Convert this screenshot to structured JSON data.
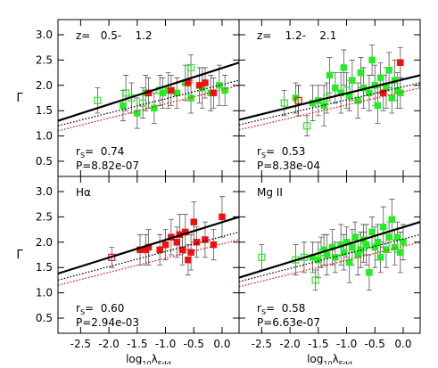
{
  "chart_data": [
    {
      "type": "scatter",
      "annotation": "z=   0.5-    1.2",
      "rs_symbol": "r",
      "rs_sub": "S",
      "rs_text": "=  0.74",
      "p_text": "P=8.82e-07",
      "ylabel": "Γ",
      "show_yticks": true,
      "show_xticks": false,
      "xlim": [
        -2.9,
        0.3
      ],
      "ylim": [
        0.2,
        3.3
      ],
      "xticks": [
        -2.5,
        -2,
        -1.5,
        -1,
        -0.5,
        0
      ],
      "yticks": [
        0.5,
        {
          "value": 1,
          "label": "1.0"
        },
        1.5,
        {
          "value": 2,
          "label": "2.0"
        },
        2.5,
        {
          "value": 3,
          "label": "3.0"
        }
      ],
      "series": [
        {
          "marker": "square-filled",
          "color": "#22ee22",
          "x": [
            -1.75,
            -1.5,
            -1.35,
            -1.2,
            -1.05,
            -0.95,
            -0.8,
            -0.65,
            -0.55,
            -0.35,
            -0.2,
            -0.05,
            0.05
          ],
          "values": [
            1.6,
            1.45,
            1.85,
            1.55,
            1.85,
            1.9,
            1.85,
            2.05,
            1.75,
            1.95,
            1.85,
            2.0,
            1.9
          ],
          "errors": [
            0.3,
            0.3,
            0.35,
            0.3,
            0.3,
            0.35,
            0.3,
            0.35,
            0.3,
            0.4,
            0.35,
            0.4,
            0.3
          ]
        },
        {
          "marker": "square-open",
          "color": "#22ee22",
          "x": [
            -2.2,
            -1.7,
            -1.6,
            -1.4,
            -1.1,
            -0.55
          ],
          "values": [
            1.7,
            1.85,
            1.75,
            1.65,
            1.9,
            2.35
          ],
          "errors": [
            0.25,
            0.35,
            0.3,
            0.3,
            0.3,
            0.25
          ]
        },
        {
          "marker": "square-filled",
          "color": "#ee1111",
          "x": [
            -1.3,
            -0.9,
            -0.6,
            -0.4,
            -0.3,
            -0.15
          ],
          "values": [
            1.85,
            1.9,
            2.05,
            2.0,
            2.05,
            1.85
          ],
          "errors": [
            0.3,
            0.3,
            0.35,
            0.35,
            0.3,
            0.3
          ]
        }
      ],
      "lines": [
        {
          "style": "solid",
          "color": "#000000",
          "x": [
            -2.9,
            0.3
          ],
          "values": [
            1.3,
            2.45
          ]
        },
        {
          "style": "dotted",
          "color": "#000000",
          "x": [
            -2.9,
            0.3
          ],
          "values": [
            1.2,
            2.1
          ]
        },
        {
          "style": "dotted",
          "color": "#ee1111",
          "x": [
            -2.9,
            0.3
          ],
          "values": [
            1.1,
            2.0
          ]
        }
      ]
    },
    {
      "type": "scatter",
      "annotation": "z=    1.2-    2.1",
      "rs_symbol": "r",
      "rs_sub": "S",
      "rs_text": "=  0.53",
      "p_text": "P=8.38e-04",
      "show_yticks": false,
      "show_xticks": false,
      "xlim": [
        -2.9,
        0.3
      ],
      "ylim": [
        0.2,
        3.3
      ],
      "xticks": [
        -2.5,
        -2,
        -1.5,
        -1,
        -0.5,
        0
      ],
      "yticks": [
        0.5,
        1,
        1.5,
        2,
        2.5,
        3
      ],
      "series": [
        {
          "marker": "square-filled",
          "color": "#22ee22",
          "x": [
            -1.9,
            -1.6,
            -1.5,
            -1.4,
            -1.3,
            -1.2,
            -1.1,
            -1.05,
            -0.95,
            -0.9,
            -0.8,
            -0.75,
            -0.7,
            -0.6,
            -0.55,
            -0.5,
            -0.45,
            -0.4,
            -0.3,
            -0.25,
            -0.2,
            -0.15,
            -0.1,
            -0.05
          ],
          "values": [
            1.75,
            1.65,
            1.7,
            1.6,
            2.2,
            1.95,
            1.85,
            2.35,
            1.8,
            2.1,
            1.7,
            2.25,
            1.95,
            1.85,
            2.5,
            2.0,
            1.6,
            2.15,
            1.95,
            2.3,
            1.75,
            2.1,
            1.9,
            1.85
          ],
          "errors": [
            0.3,
            0.35,
            0.3,
            0.4,
            0.35,
            0.3,
            0.4,
            0.35,
            0.3,
            0.4,
            0.35,
            0.3,
            0.4,
            0.35,
            0.3,
            0.4,
            0.35,
            0.3,
            0.4,
            0.35,
            0.3,
            0.4,
            0.35,
            0.3
          ]
        },
        {
          "marker": "square-open",
          "color": "#22ee22",
          "x": [
            -2.1,
            -1.85,
            -1.7,
            -1.35,
            -1.0
          ],
          "values": [
            1.65,
            1.7,
            1.2,
            1.75,
            1.9
          ],
          "errors": [
            0.25,
            0.3,
            0.2,
            0.3,
            0.35
          ]
        },
        {
          "marker": "square-filled",
          "color": "#ee1111",
          "x": [
            -0.35,
            -0.05
          ],
          "values": [
            1.85,
            2.45
          ],
          "errors": [
            0.35,
            0.3
          ]
        },
        {
          "marker": "square-open",
          "color": "#ee1111",
          "x": [
            -1.85
          ],
          "values": [
            1.7
          ],
          "errors": [
            0.3
          ]
        }
      ],
      "lines": [
        {
          "style": "solid",
          "color": "#000000",
          "x": [
            -2.9,
            0.3
          ],
          "values": [
            1.32,
            2.2
          ]
        },
        {
          "style": "dotted",
          "color": "#000000",
          "x": [
            -2.9,
            0.3
          ],
          "values": [
            1.22,
            2.05
          ]
        },
        {
          "style": "dotted",
          "color": "#ee1111",
          "x": [
            -2.9,
            0.3
          ],
          "values": [
            1.12,
            1.95
          ]
        }
      ]
    },
    {
      "type": "scatter",
      "annotation": "Hα",
      "rs_symbol": "r",
      "rs_sub": "S",
      "rs_text": "=  0.60",
      "p_text": "P=2.94e-03",
      "ylabel": "Γ",
      "xlabel": [
        "log",
        "10",
        "λ",
        "Edd"
      ],
      "show_yticks": true,
      "show_xticks": true,
      "xlim": [
        -2.9,
        0.3
      ],
      "ylim": [
        0.2,
        3.3
      ],
      "xticks": [
        -2.5,
        {
          "value": -2,
          "label": "-2.0"
        },
        -1.5,
        {
          "value": -1,
          "label": "-1.0"
        },
        -0.5,
        {
          "value": 0,
          "label": "0.0"
        }
      ],
      "yticks": [
        0.5,
        {
          "value": 1,
          "label": "1.0"
        },
        1.5,
        {
          "value": 2,
          "label": "2.0"
        },
        2.5,
        {
          "value": 3,
          "label": "3.0"
        }
      ],
      "series": [
        {
          "marker": "square-filled",
          "color": "#ee1111",
          "x": [
            -1.45,
            -1.35,
            -1.3,
            -1.1,
            -1.0,
            -0.9,
            -0.8,
            -0.75,
            -0.7,
            -0.65,
            -0.6,
            -0.55,
            -0.5,
            -0.45,
            -0.3,
            -0.15,
            0.0
          ],
          "values": [
            1.85,
            1.85,
            1.9,
            1.85,
            1.95,
            2.1,
            2.0,
            2.15,
            1.85,
            2.2,
            1.65,
            1.8,
            2.4,
            2.0,
            2.05,
            1.95,
            2.5
          ],
          "errors": [
            0.3,
            0.3,
            0.35,
            0.3,
            0.3,
            0.35,
            0.3,
            0.4,
            0.3,
            0.35,
            0.3,
            0.35,
            0.4,
            0.3,
            0.35,
            0.3,
            0.4
          ]
        },
        {
          "marker": "square-open",
          "color": "#ee1111",
          "x": [
            -1.95
          ],
          "values": [
            1.7
          ],
          "errors": [
            0.2
          ]
        }
      ],
      "lines": [
        {
          "style": "solid",
          "color": "#000000",
          "x": [
            -2.9,
            0.3
          ],
          "values": [
            1.38,
            2.5
          ]
        },
        {
          "style": "dotted",
          "color": "#000000",
          "x": [
            -2.9,
            0.3
          ],
          "values": [
            1.25,
            2.2
          ]
        },
        {
          "style": "dotted",
          "color": "#ee1111",
          "x": [
            -2.9,
            0.3
          ],
          "values": [
            1.15,
            2.05
          ]
        }
      ]
    },
    {
      "type": "scatter",
      "annotation": "Mg II",
      "rs_symbol": "r",
      "rs_sub": "S",
      "rs_text": "=  0.58",
      "p_text": "P=6.63e-07",
      "xlabel": [
        "log",
        "10",
        "λ",
        "Edd"
      ],
      "show_yticks": false,
      "show_xticks": true,
      "xlim": [
        -2.9,
        0.3
      ],
      "ylim": [
        0.2,
        3.3
      ],
      "xticks": [
        -2.5,
        {
          "value": -2,
          "label": "-2.0"
        },
        -1.5,
        {
          "value": -1,
          "label": "-1.0"
        },
        -0.5,
        {
          "value": 0,
          "label": "0.0"
        }
      ],
      "yticks": [
        0.5,
        1,
        1.5,
        2,
        2.5,
        3
      ],
      "series": [
        {
          "marker": "square-filled",
          "color": "#22ee22",
          "x": [
            -1.6,
            -1.5,
            -1.4,
            -1.35,
            -1.25,
            -1.2,
            -1.1,
            -1.05,
            -1.0,
            -0.95,
            -0.9,
            -0.85,
            -0.8,
            -0.75,
            -0.7,
            -0.65,
            -0.6,
            -0.55,
            -0.5,
            -0.45,
            -0.4,
            -0.35,
            -0.3,
            -0.25,
            -0.2,
            -0.15,
            -0.1,
            -0.05,
            0.0
          ],
          "values": [
            1.7,
            1.65,
            1.85,
            1.75,
            1.9,
            1.7,
            1.95,
            1.8,
            2.0,
            1.6,
            1.9,
            2.1,
            1.75,
            1.85,
            2.05,
            1.95,
            1.4,
            2.2,
            1.9,
            2.0,
            1.7,
            2.3,
            1.85,
            2.1,
            2.45,
            1.9,
            2.1,
            1.8,
            2.0
          ],
          "errors": [
            0.3,
            0.35,
            0.3,
            0.4,
            0.35,
            0.3,
            0.4,
            0.35,
            0.3,
            0.4,
            0.35,
            0.3,
            0.4,
            0.35,
            0.3,
            0.4,
            0.35,
            0.3,
            0.4,
            0.35,
            0.3,
            0.4,
            0.35,
            0.3,
            0.4,
            0.35,
            0.3,
            0.4,
            0.35
          ]
        },
        {
          "marker": "square-open",
          "color": "#22ee22",
          "x": [
            -2.5,
            -1.9,
            -1.75,
            -1.55,
            -1.45,
            -0.7
          ],
          "values": [
            1.7,
            1.65,
            1.7,
            1.25,
            1.8,
            1.9
          ],
          "errors": [
            0.25,
            0.3,
            0.3,
            0.2,
            0.3,
            0.3
          ]
        }
      ],
      "lines": [
        {
          "style": "solid",
          "color": "#000000",
          "x": [
            -2.9,
            0.3
          ],
          "values": [
            1.3,
            2.4
          ]
        },
        {
          "style": "dotted",
          "color": "#000000",
          "x": [
            -2.9,
            0.3
          ],
          "values": [
            1.22,
            2.15
          ]
        },
        {
          "style": "dotted",
          "color": "#ee1111",
          "x": [
            -2.9,
            0.3
          ],
          "values": [
            1.12,
            2.0
          ]
        }
      ]
    }
  ]
}
